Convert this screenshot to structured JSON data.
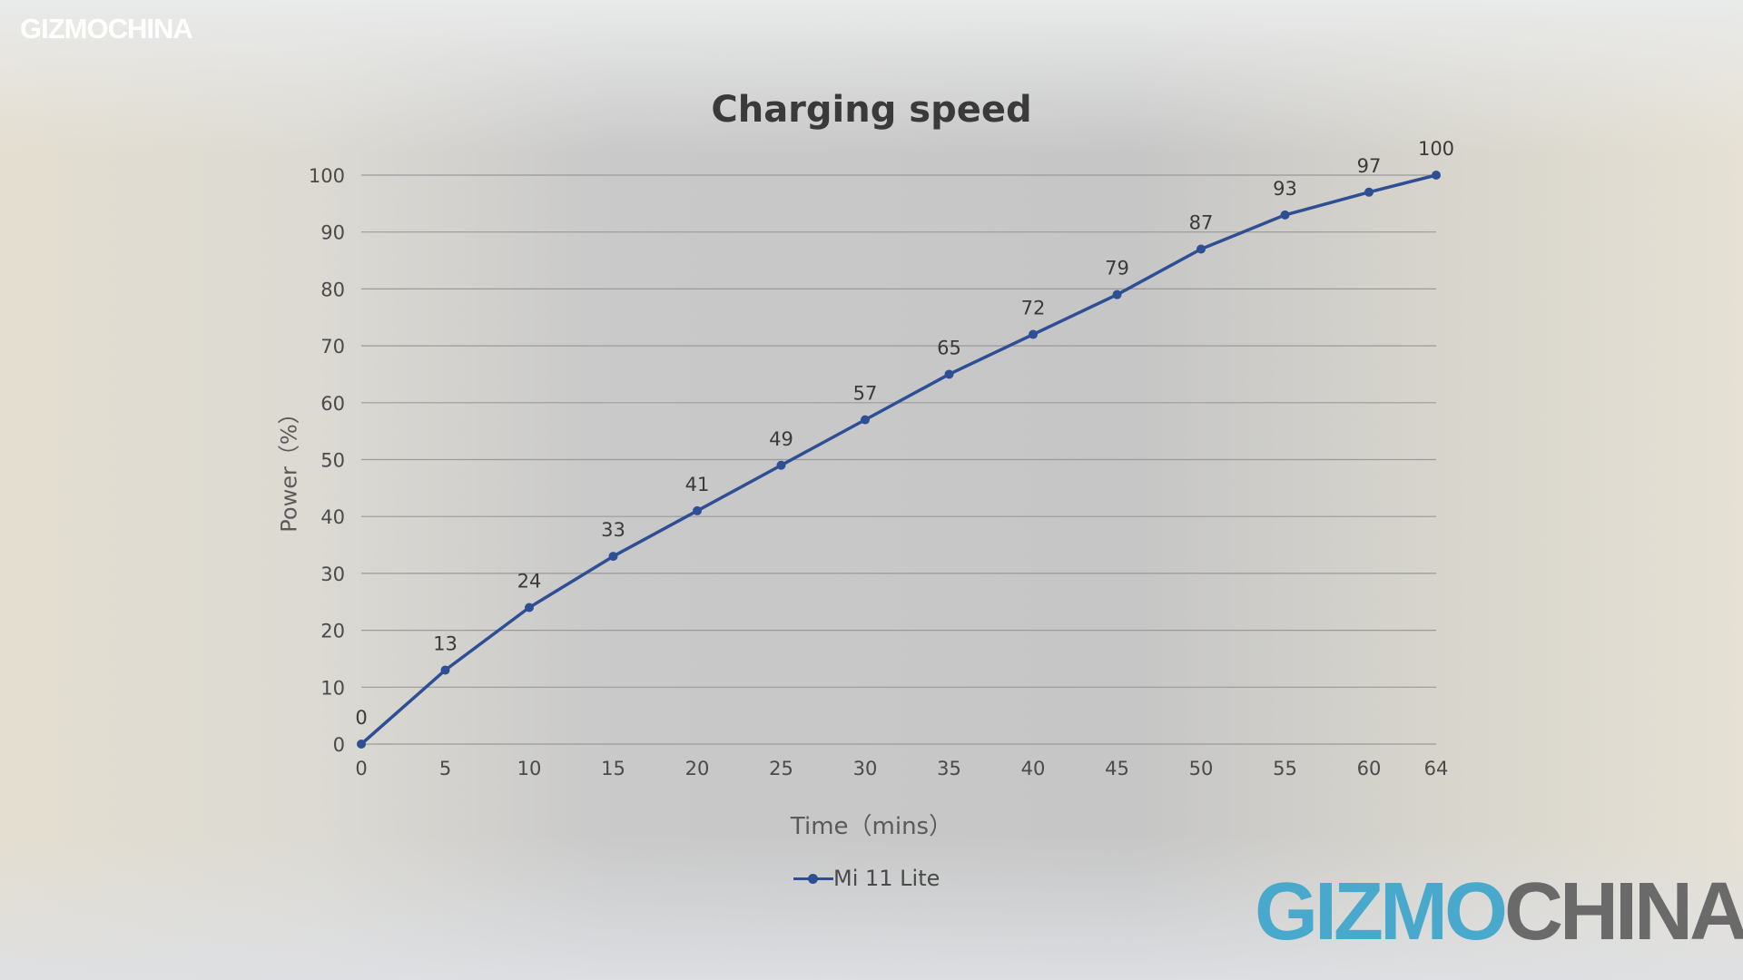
{
  "watermark": {
    "small": "GIZMOCHINA",
    "big_part1": "GIZMO",
    "big_part2": "CHINA",
    "color_blue": "#49a9cc",
    "color_gray": "#6a6a6a"
  },
  "colors": {
    "series": "#2f4f94",
    "grid": "#9a9a9a",
    "text": "#4a4a4a"
  },
  "chart_data": {
    "type": "line",
    "title": "Charging speed",
    "xlabel": "Time（mins）",
    "ylabel": "Power（%）",
    "x": [
      0,
      5,
      10,
      15,
      20,
      25,
      30,
      35,
      40,
      45,
      50,
      55,
      60,
      64
    ],
    "series": [
      {
        "name": "Mi 11 Lite",
        "values": [
          0,
          13,
          24,
          33,
          41,
          49,
          57,
          65,
          72,
          79,
          87,
          93,
          97,
          100
        ]
      }
    ],
    "yticks": [
      0,
      10,
      20,
      30,
      40,
      50,
      60,
      70,
      80,
      90,
      100
    ],
    "ylim": [
      0,
      100
    ],
    "grid": true,
    "legend_position": "bottom",
    "data_labels": true
  }
}
